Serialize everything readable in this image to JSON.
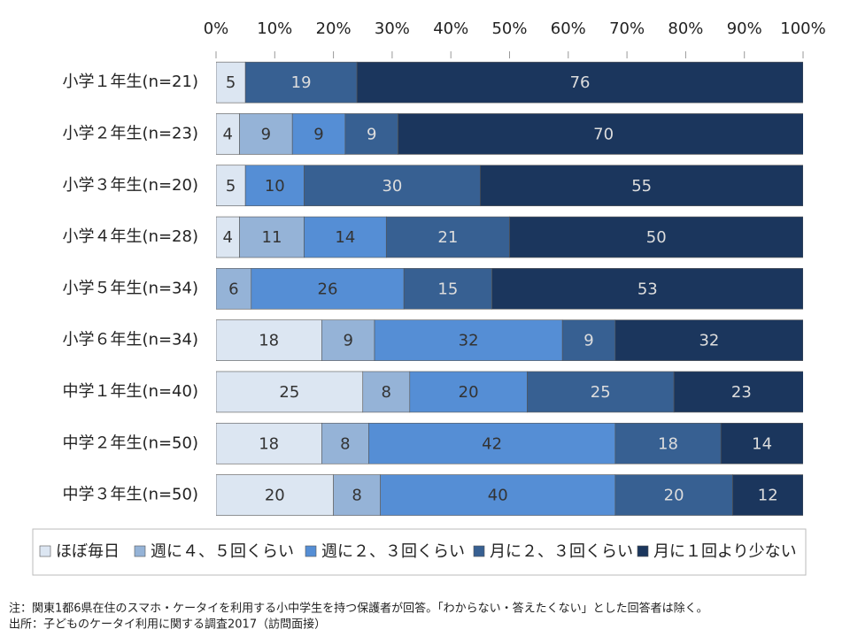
{
  "chart_data": {
    "type": "stacked-bar-horizontal",
    "categories": [
      "小学１年生(n=21)",
      "小学２年生(n=23)",
      "小学３年生(n=20)",
      "小学４年生(n=28)",
      "小学５年生(n=34)",
      "小学６年生(n=34)",
      "中学１年生(n=40)",
      "中学２年生(n=50)",
      "中学３年生(n=50)"
    ],
    "series": [
      {
        "name": "ほぼ毎日",
        "color": "#dce6f2",
        "values": [
          5,
          4,
          5,
          4,
          null,
          18,
          25,
          18,
          20
        ]
      },
      {
        "name": "週に４、５回くらい",
        "color": "#95b3d7",
        "values": [
          null,
          9,
          null,
          11,
          6,
          9,
          8,
          8,
          8
        ]
      },
      {
        "name": "週に２、３回くらい",
        "color": "#558ed5",
        "values": [
          null,
          9,
          10,
          14,
          26,
          32,
          20,
          42,
          40
        ]
      },
      {
        "name": "月に２、３回くらい",
        "color": "#376092",
        "values": [
          19,
          9,
          30,
          21,
          15,
          9,
          25,
          18,
          20
        ]
      },
      {
        "name": "月に１回より少ない",
        "color": "#1b365d",
        "values": [
          76,
          70,
          55,
          50,
          53,
          32,
          23,
          14,
          12
        ]
      }
    ],
    "xlim": [
      0,
      100
    ],
    "xticks": [
      {
        "value": 0,
        "label": "0%"
      },
      {
        "value": 10,
        "label": "10%"
      },
      {
        "value": 20,
        "label": "20%"
      },
      {
        "value": 30,
        "label": "30%"
      },
      {
        "value": 40,
        "label": "40%"
      },
      {
        "value": 50,
        "label": "50%"
      },
      {
        "value": 60,
        "label": "60%"
      },
      {
        "value": 70,
        "label": "70%"
      },
      {
        "value": 80,
        "label": "80%"
      },
      {
        "value": 90,
        "label": "90%"
      },
      {
        "value": 100,
        "label": "100%"
      }
    ],
    "legend": "bottom"
  },
  "notes": [
    "注：関東1都6県在住のスマホ・ケータイを利用する小中学生を持つ保護者が回答。「わからない・答えたくない」とした回答者は除く。",
    "出所：子どものケータイ利用に関する調査2017（訪問面接）"
  ]
}
